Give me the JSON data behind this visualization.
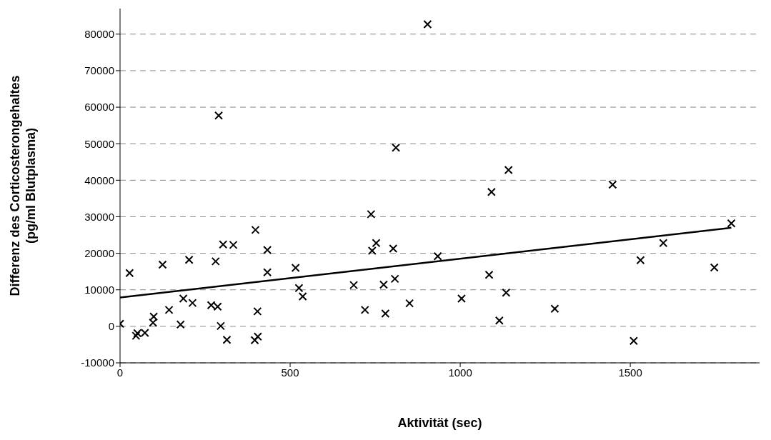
{
  "chart_data": {
    "type": "scatter",
    "xlabel": "Aktivität (sec)",
    "ylabel": "Differenz des Corticosterongehaltes\n(pg/ml Blutplasma)",
    "xlim": [
      0,
      1880
    ],
    "xticks": [
      0,
      500,
      1000,
      1500
    ],
    "ylim": [
      -10000,
      87000
    ],
    "yticks": [
      -10000,
      0,
      10000,
      20000,
      30000,
      40000,
      50000,
      60000,
      70000,
      80000
    ],
    "grid": "y",
    "marker": "cross",
    "series": [
      {
        "color": "#000000",
        "x": [
          0,
          28,
          47,
          51,
          73,
          97,
          99,
          125,
          144,
          178,
          186,
          203,
          213,
          268,
          281,
          287,
          290,
          296,
          303,
          314,
          333,
          398,
          396,
          404,
          405,
          433,
          433,
          516,
          526,
          537,
          687,
          720,
          738,
          741,
          753,
          775,
          780,
          803,
          808,
          811,
          851,
          904,
          934,
          1004,
          1085,
          1092,
          1115,
          1135,
          1142,
          1278,
          1448,
          1510,
          1530,
          1597,
          1747,
          1797
        ],
        "values": [
          700,
          14600,
          -2600,
          -1900,
          -1800,
          1000,
          2650,
          16900,
          4500,
          500,
          7600,
          18200,
          6400,
          5800,
          17800,
          5400,
          57700,
          100,
          22400,
          -3700,
          22300,
          26400,
          -3800,
          4100,
          -2800,
          20900,
          14800,
          16000,
          10500,
          8200,
          11300,
          4500,
          30700,
          20700,
          22800,
          11400,
          3500,
          21300,
          13000,
          48900,
          6300,
          82700,
          19200,
          7600,
          14100,
          36800,
          1600,
          9200,
          42800,
          4800,
          38800,
          -4000,
          18100,
          22800,
          16100,
          28200
        ]
      },
      {
        "type": "line",
        "color": "#000000",
        "marker": "none",
        "x": [
          0,
          1797
        ],
        "values": [
          7900,
          27000
        ]
      }
    ]
  }
}
